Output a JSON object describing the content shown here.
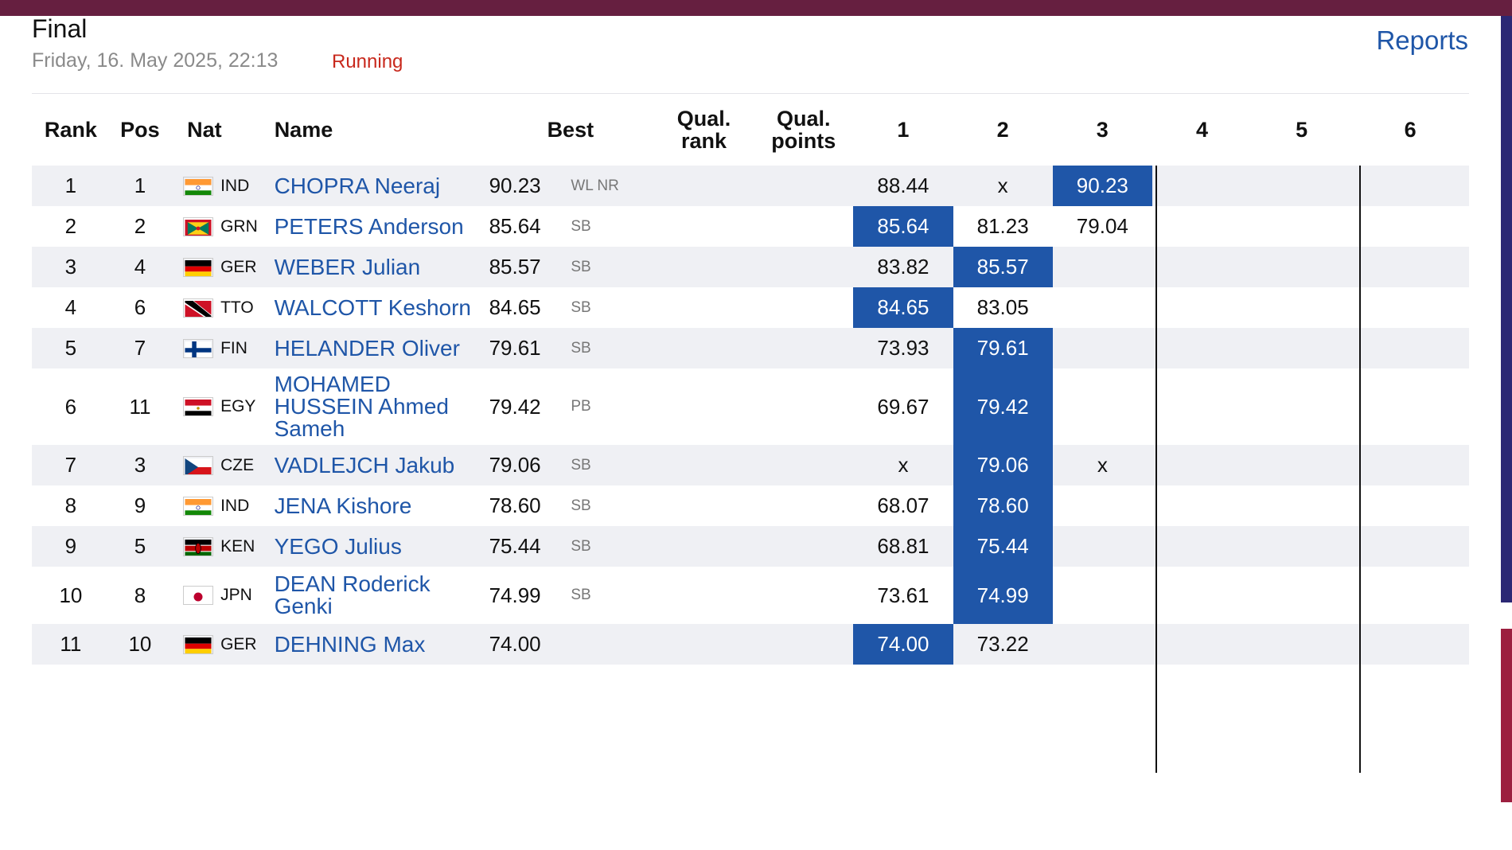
{
  "header": {
    "title": "Final",
    "datetime": "Friday, 16. May 2025, 22:13",
    "status": "Running",
    "reports_label": "Reports"
  },
  "colors": {
    "brand_bar": "#661f40",
    "link": "#1f56a8",
    "highlight": "#1f56a8",
    "status_running": "#c8281c",
    "row_alt": "#eff0f4"
  },
  "columns": {
    "rank": "Rank",
    "pos": "Pos",
    "nat": "Nat",
    "name": "Name",
    "best": "Best",
    "qual_rank_1": "Qual.",
    "qual_rank_2": "rank",
    "qual_points_1": "Qual.",
    "qual_points_2": "points",
    "a1": "1",
    "a2": "2",
    "a3": "3",
    "a4": "4",
    "a5": "5",
    "a6": "6"
  },
  "rows": [
    {
      "rank": "1",
      "pos": "1",
      "nat": "IND",
      "flag": "flag-india-icon",
      "name": "CHOPRA Neeraj",
      "best": "90.23",
      "record": "WL NR",
      "qual_rank": "",
      "qual_points": "",
      "attempts": [
        "88.44",
        "x",
        "90.23",
        "",
        "",
        ""
      ],
      "best_attempt": 3
    },
    {
      "rank": "2",
      "pos": "2",
      "nat": "GRN",
      "flag": "flag-grenada-icon",
      "name": "PETERS Anderson",
      "best": "85.64",
      "record": "SB",
      "qual_rank": "",
      "qual_points": "",
      "attempts": [
        "85.64",
        "81.23",
        "79.04",
        "",
        "",
        ""
      ],
      "best_attempt": 1
    },
    {
      "rank": "3",
      "pos": "4",
      "nat": "GER",
      "flag": "flag-germany-icon",
      "name": "WEBER Julian",
      "best": "85.57",
      "record": "SB",
      "qual_rank": "",
      "qual_points": "",
      "attempts": [
        "83.82",
        "85.57",
        "",
        "",
        "",
        ""
      ],
      "best_attempt": 2
    },
    {
      "rank": "4",
      "pos": "6",
      "nat": "TTO",
      "flag": "flag-trinidad-icon",
      "name": "WALCOTT Keshorn",
      "best": "84.65",
      "record": "SB",
      "qual_rank": "",
      "qual_points": "",
      "attempts": [
        "84.65",
        "83.05",
        "",
        "",
        "",
        ""
      ],
      "best_attempt": 1
    },
    {
      "rank": "5",
      "pos": "7",
      "nat": "FIN",
      "flag": "flag-finland-icon",
      "name": "HELANDER Oliver",
      "best": "79.61",
      "record": "SB",
      "qual_rank": "",
      "qual_points": "",
      "attempts": [
        "73.93",
        "79.61",
        "",
        "",
        "",
        ""
      ],
      "best_attempt": 2
    },
    {
      "rank": "6",
      "pos": "11",
      "nat": "EGY",
      "flag": "flag-egypt-icon",
      "name": "MOHAMED HUSSEIN Ahmed Sameh",
      "best": "79.42",
      "record": "PB",
      "qual_rank": "",
      "qual_points": "",
      "attempts": [
        "69.67",
        "79.42",
        "",
        "",
        "",
        ""
      ],
      "best_attempt": 2
    },
    {
      "rank": "7",
      "pos": "3",
      "nat": "CZE",
      "flag": "flag-czechia-icon",
      "name": "VADLEJCH Jakub",
      "best": "79.06",
      "record": "SB",
      "qual_rank": "",
      "qual_points": "",
      "attempts": [
        "x",
        "79.06",
        "x",
        "",
        "",
        ""
      ],
      "best_attempt": 2
    },
    {
      "rank": "8",
      "pos": "9",
      "nat": "IND",
      "flag": "flag-india-icon",
      "name": "JENA Kishore",
      "best": "78.60",
      "record": "SB",
      "qual_rank": "",
      "qual_points": "",
      "attempts": [
        "68.07",
        "78.60",
        "",
        "",
        "",
        ""
      ],
      "best_attempt": 2
    },
    {
      "rank": "9",
      "pos": "5",
      "nat": "KEN",
      "flag": "flag-kenya-icon",
      "name": "YEGO Julius",
      "best": "75.44",
      "record": "SB",
      "qual_rank": "",
      "qual_points": "",
      "attempts": [
        "68.81",
        "75.44",
        "",
        "",
        "",
        ""
      ],
      "best_attempt": 2
    },
    {
      "rank": "10",
      "pos": "8",
      "nat": "JPN",
      "flag": "flag-japan-icon",
      "name": "DEAN Roderick Genki",
      "best": "74.99",
      "record": "SB",
      "qual_rank": "",
      "qual_points": "",
      "attempts": [
        "73.61",
        "74.99",
        "",
        "",
        "",
        ""
      ],
      "best_attempt": 2
    },
    {
      "rank": "11",
      "pos": "10",
      "nat": "GER",
      "flag": "flag-germany-icon",
      "name": "DEHNING Max",
      "best": "74.00",
      "record": "",
      "qual_rank": "",
      "qual_points": "",
      "attempts": [
        "74.00",
        "73.22",
        "",
        "",
        "",
        ""
      ],
      "best_attempt": 1
    }
  ]
}
